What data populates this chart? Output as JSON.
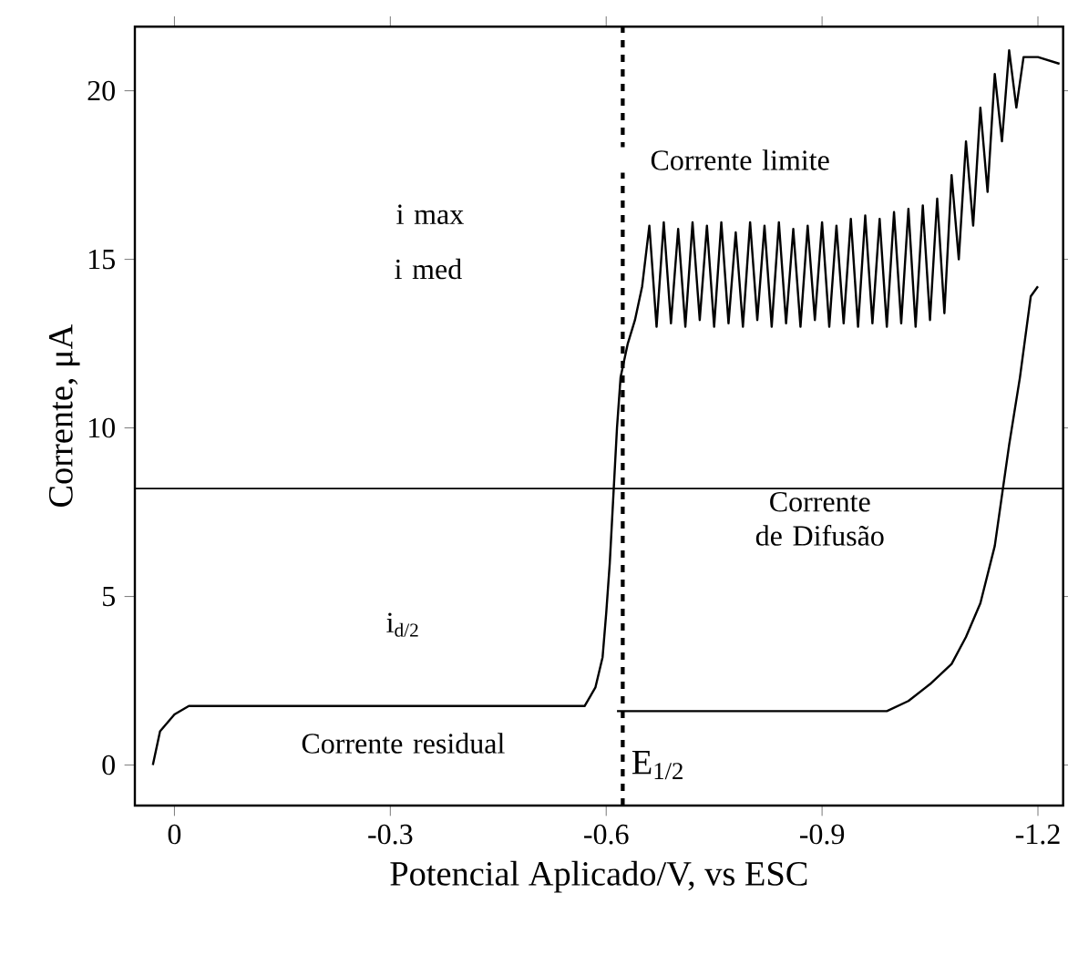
{
  "chart_data": {
    "type": "line",
    "xlabel": "Potencial Aplicado/V, vs ESC",
    "ylabel": "Corrente, μA",
    "xlim": [
      0.055,
      -1.235
    ],
    "ylim": [
      -1.2,
      21.9
    ],
    "xticks": [
      0,
      -0.3,
      -0.6,
      -0.9,
      -1.2
    ],
    "yticks": [
      0,
      5,
      10,
      15,
      20
    ],
    "grid": false,
    "marker": "none",
    "line_style": "solid",
    "series": [
      {
        "color": "#000000",
        "x": [
          0.03,
          0.02,
          0.0,
          -0.02,
          -0.57,
          -0.585,
          -0.595,
          -0.6,
          -0.605,
          -0.61,
          -0.615,
          -0.62,
          -0.63,
          -0.64,
          -0.65,
          -0.66,
          -0.67,
          -0.68,
          -0.69,
          -0.7,
          -0.71,
          -0.72,
          -0.73,
          -0.74,
          -0.75,
          -0.76,
          -0.77,
          -0.78,
          -0.79,
          -0.8,
          -0.81,
          -0.82,
          -0.83,
          -0.84,
          -0.85,
          -0.86,
          -0.87,
          -0.88,
          -0.89,
          -0.9,
          -0.91,
          -0.92,
          -0.93,
          -0.94,
          -0.95,
          -0.96,
          -0.97,
          -0.98,
          -0.99,
          -1.0,
          -1.01,
          -1.02,
          -1.03,
          -1.04,
          -1.05,
          -1.06,
          -1.07,
          -1.08,
          -1.09,
          -1.1,
          -1.11,
          -1.12,
          -1.13,
          -1.14,
          -1.15,
          -1.16,
          -1.17,
          -1.18,
          -1.2,
          -1.23
        ],
        "values": [
          0.0,
          1.0,
          1.5,
          1.75,
          1.75,
          2.3,
          3.2,
          4.5,
          6,
          8,
          10,
          11.5,
          12.5,
          13.2,
          14.2,
          16.0,
          13.0,
          16.1,
          13.1,
          15.9,
          13.0,
          16.1,
          13.2,
          16.0,
          13.0,
          16.1,
          13.1,
          15.8,
          13.0,
          16.1,
          13.2,
          16.0,
          13.0,
          16.1,
          13.1,
          15.9,
          13.0,
          16.0,
          13.2,
          16.1,
          13.0,
          16.0,
          13.1,
          16.2,
          13.0,
          16.3,
          13.1,
          16.2,
          13.0,
          16.4,
          13.1,
          16.5,
          13.0,
          16.6,
          13.2,
          16.8,
          13.4,
          17.5,
          15.0,
          18.5,
          16.0,
          19.5,
          17.0,
          20.5,
          18.5,
          21.2,
          19.5,
          21.0,
          21.0,
          20.8
        ]
      },
      {
        "color": "#000000",
        "x": [
          -0.615,
          -0.99,
          -1.02,
          -1.05,
          -1.08,
          -1.1,
          -1.12,
          -1.14,
          -1.16,
          -1.175,
          -1.19,
          -1.2
        ],
        "values": [
          1.6,
          1.6,
          1.9,
          2.4,
          3.0,
          3.8,
          4.8,
          6.5,
          9.5,
          11.5,
          13.9,
          14.2
        ]
      }
    ],
    "ref_lines": [
      {
        "axis": "y",
        "value": 8.2,
        "color": "#000000",
        "line_style": "solid"
      },
      {
        "axis": "x",
        "value": -0.623,
        "label": "E$_{1/2}$",
        "color": "#000000",
        "line_style": "dashed"
      }
    ],
    "annotations": [
      "Corrente limite",
      "i max",
      "i med",
      "Corrente de Difusão",
      "i$_{d/2}$",
      "Corrente residual"
    ]
  }
}
